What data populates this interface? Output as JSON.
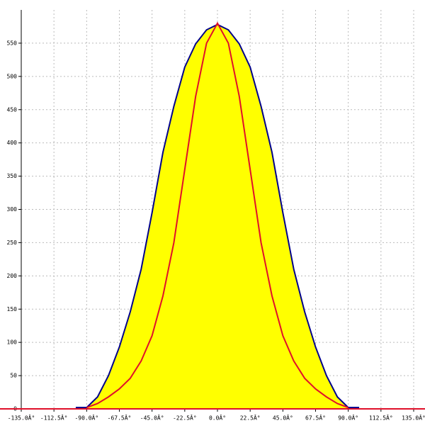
{
  "chart_data": {
    "type": "area-line",
    "x": [
      -97.5,
      -90,
      -82.5,
      -75,
      -67.5,
      -60,
      -52.5,
      -45,
      -37.5,
      -30,
      -22.5,
      -15,
      -7.5,
      0,
      7.5,
      15,
      22.5,
      30,
      37.5,
      45,
      52.5,
      60,
      67.5,
      75,
      82.5,
      90,
      97.5
    ],
    "series": [
      {
        "color": "#00008b",
        "fill": "#ffff00",
        "values": [
          2,
          2,
          18,
          50,
          93,
          146,
          210,
          295,
          386,
          455,
          514,
          549,
          570,
          578,
          570,
          549,
          514,
          455,
          386,
          295,
          210,
          146,
          93,
          50,
          18,
          2,
          2
        ]
      },
      {
        "color": "#e0102a",
        "values": [
          null,
          2,
          8,
          18,
          30,
          46,
          72,
          110,
          170,
          250,
          360,
          470,
          550,
          580,
          550,
          470,
          360,
          250,
          170,
          110,
          72,
          46,
          30,
          18,
          8,
          2,
          null
        ]
      }
    ],
    "xlim": [
      -135,
      135
    ],
    "ylim": [
      0,
      600
    ],
    "xticks": [
      {
        "value": -135,
        "label": "-135.0Â°"
      },
      {
        "value": -112.5,
        "label": "-112.5Â°"
      },
      {
        "value": -90,
        "label": "-90.0Â°"
      },
      {
        "value": -67.5,
        "label": "-67.5Â°"
      },
      {
        "value": -45,
        "label": "-45.0Â°"
      },
      {
        "value": -22.5,
        "label": "-22.5Â°"
      },
      {
        "value": 0,
        "label": "0.0Â°"
      },
      {
        "value": 22.5,
        "label": "22.5Â°"
      },
      {
        "value": 45,
        "label": "45.0Â°"
      },
      {
        "value": 67.5,
        "label": "67.5Â°"
      },
      {
        "value": 90,
        "label": "90.0Â°"
      },
      {
        "value": 112.5,
        "label": "112.5Â°"
      },
      {
        "value": 135,
        "label": "135.0Â°"
      }
    ],
    "yticks": [
      0,
      50,
      100,
      150,
      200,
      250,
      300,
      350,
      400,
      450,
      500,
      550
    ],
    "grid": true
  }
}
